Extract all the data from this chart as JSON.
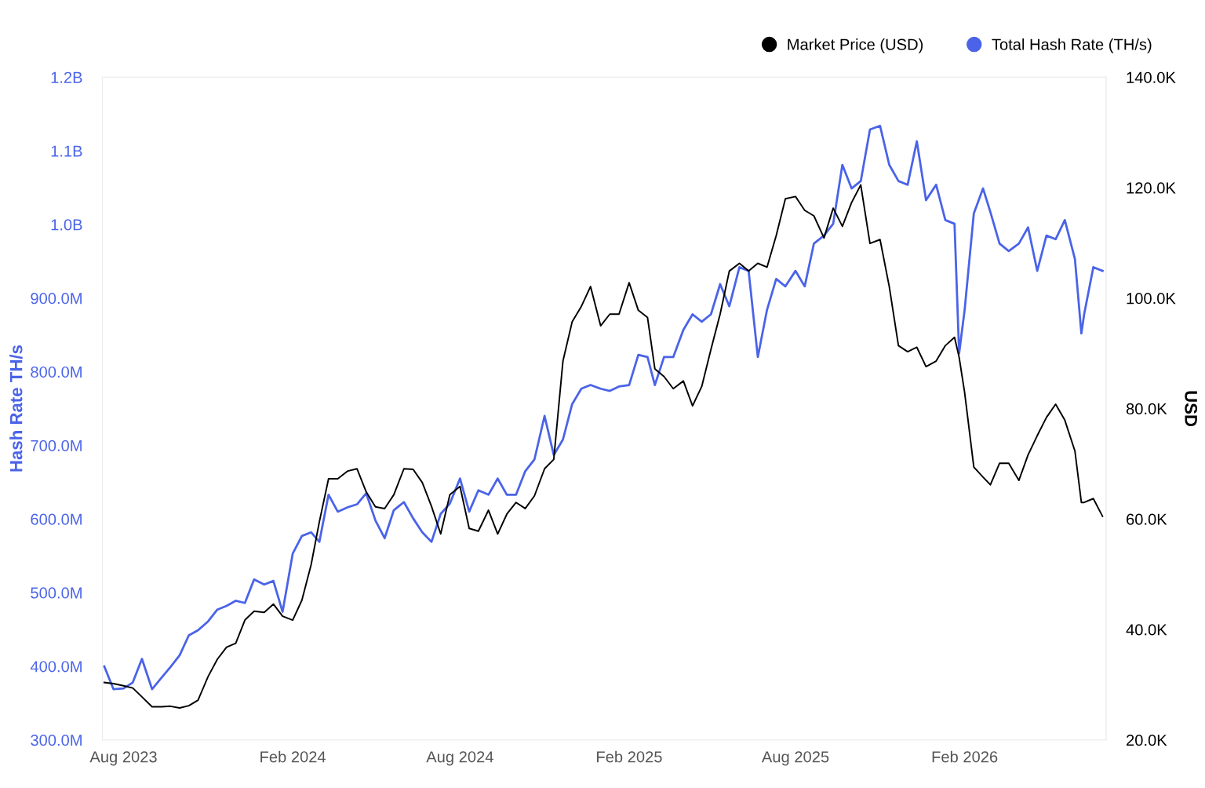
{
  "chart_data": {
    "type": "line",
    "ylabel": "Hash Rate TH/s",
    "y2label": "USD",
    "x": [
      "2023-07-11",
      "2023-07-21",
      "2023-08-01",
      "2023-08-11",
      "2023-08-21",
      "2023-09-01",
      "2023-09-11",
      "2023-09-21",
      "2023-10-01",
      "2023-10-11",
      "2023-10-21",
      "2023-11-01",
      "2023-11-11",
      "2023-11-21",
      "2023-12-01",
      "2023-12-11",
      "2023-12-21",
      "2024-01-01",
      "2024-01-11",
      "2024-01-21",
      "2024-02-01",
      "2024-02-11",
      "2024-02-21",
      "2024-03-01",
      "2024-03-11",
      "2024-03-21",
      "2024-04-01",
      "2024-04-11",
      "2024-04-21",
      "2024-05-01",
      "2024-05-11",
      "2024-05-21",
      "2024-06-01",
      "2024-06-11",
      "2024-06-21",
      "2024-07-01",
      "2024-07-11",
      "2024-07-21",
      "2024-08-01",
      "2024-08-11",
      "2024-08-21",
      "2024-09-01",
      "2024-09-11",
      "2024-09-21",
      "2024-10-01",
      "2024-10-11",
      "2024-10-21",
      "2024-11-01",
      "2024-11-11",
      "2024-11-21",
      "2024-12-01",
      "2024-12-11",
      "2024-12-21",
      "2025-01-01",
      "2025-01-11",
      "2025-01-21",
      "2025-02-01",
      "2025-02-11",
      "2025-02-21",
      "2025-03-01",
      "2025-03-11",
      "2025-03-21",
      "2025-04-01",
      "2025-04-11",
      "2025-04-21",
      "2025-05-01",
      "2025-05-11",
      "2025-05-21",
      "2025-06-01",
      "2025-06-11",
      "2025-06-21",
      "2025-07-01",
      "2025-07-11",
      "2025-07-21",
      "2025-08-01",
      "2025-08-11",
      "2025-08-21",
      "2025-09-01",
      "2025-09-11",
      "2025-09-21",
      "2025-10-01",
      "2025-10-11",
      "2025-10-21",
      "2025-11-01",
      "2025-11-11",
      "2025-11-21",
      "2025-12-01",
      "2025-12-11",
      "2025-12-21",
      "2026-01-01",
      "2026-01-11",
      "2026-01-21",
      "2026-01-26",
      "2026-02-01",
      "2026-02-11",
      "2026-02-21",
      "2026-03-01",
      "2026-03-11",
      "2026-03-21",
      "2026-04-01",
      "2026-04-11",
      "2026-04-21",
      "2026-05-01",
      "2026-05-11",
      "2026-05-21",
      "2026-06-01",
      "2026-06-08",
      "2026-06-11",
      "2026-06-21",
      "2026-07-01"
    ],
    "series": [
      {
        "name": "Market Price (USD)",
        "color": "#000000",
        "axis": "y2",
        "values": [
          30400,
          30200,
          29800,
          29400,
          27800,
          26000,
          26000,
          26100,
          25800,
          26200,
          27200,
          31500,
          34600,
          36800,
          37500,
          41700,
          43300,
          43100,
          44600,
          42400,
          41700,
          45300,
          51700,
          59500,
          67300,
          67300,
          68700,
          69100,
          64900,
          62200,
          61900,
          64400,
          69100,
          69000,
          66600,
          62300,
          57300,
          64400,
          65900,
          58300,
          57800,
          61600,
          57300,
          60900,
          63000,
          61900,
          64200,
          69100,
          70800,
          88600,
          95700,
          98500,
          102100,
          95000,
          97100,
          97100,
          102800,
          97800,
          96500,
          87200,
          85800,
          83600,
          85000,
          80500,
          84000,
          90700,
          97100,
          104900,
          106300,
          104900,
          106300,
          105600,
          111300,
          118000,
          118400,
          115900,
          114900,
          110900,
          116300,
          113000,
          117300,
          120500,
          109900,
          110600,
          102100,
          91400,
          90300,
          91100,
          87600,
          88600,
          91400,
          92900,
          89300,
          82900,
          69400,
          67600,
          66200,
          70100,
          70100,
          67000,
          71600,
          75100,
          78400,
          80800,
          77900,
          72300,
          63000,
          63000,
          63700,
          60500
        ]
      },
      {
        "name": "Total Hash Rate (TH/s)",
        "color": "#4a63e8",
        "axis": "y",
        "values": [
          400000000.0,
          369000000.0,
          370000000.0,
          378000000.0,
          410000000.0,
          369000000.0,
          384000000.0,
          399000000.0,
          415000000.0,
          442000000.0,
          449000000.0,
          461000000.0,
          477000000.0,
          482000000.0,
          489000000.0,
          486000000.0,
          518000000.0,
          511000000.0,
          516000000.0,
          474000000.0,
          553000000.0,
          577000000.0,
          582000000.0,
          569000000.0,
          633000000.0,
          610000000.0,
          616000000.0,
          620000000.0,
          635000000.0,
          598000000.0,
          574000000.0,
          612000000.0,
          623000000.0,
          601000000.0,
          582000000.0,
          569000000.0,
          607000000.0,
          621000000.0,
          655000000.0,
          610000000.0,
          639000000.0,
          633000000.0,
          655000000.0,
          633000000.0,
          633000000.0,
          665000000.0,
          681000000.0,
          740000000.0,
          687000000.0,
          708000000.0,
          756000000.0,
          777000000.0,
          782000000.0,
          777000000.0,
          774000000.0,
          780000000.0,
          782000000.0,
          823000000.0,
          820000000.0,
          782000000.0,
          820000000.0,
          820000000.0,
          857000000.0,
          878000000.0,
          868000000.0,
          878000000.0,
          919000000.0,
          889000000.0,
          942000000.0,
          937000000.0,
          820000000.0,
          884000000.0,
          926000000.0,
          916000000.0,
          937000000.0,
          916000000.0,
          974000000.0,
          985000000.0,
          1001000000.0,
          1081000000.0,
          1049000000.0,
          1059000000.0,
          1129000000.0,
          1134000000.0,
          1081000000.0,
          1059000000.0,
          1054000000.0,
          1113000000.0,
          1033000000.0,
          1054000000.0,
          1006000000.0,
          1001000000.0,
          825000000.0,
          884000000.0,
          1015000000.0,
          1049000000.0,
          1017000000.0,
          974000000.0,
          964000000.0,
          974000000.0,
          996000000.0,
          937000000.0,
          985000000.0,
          980000000.0,
          1006000000.0,
          953000000.0,
          852000000.0,
          878000000.0,
          942000000.0,
          937000000.0
        ]
      }
    ],
    "xlim": [
      "2023-07-09",
      "2026-07-05"
    ],
    "xticks": [
      {
        "value": "2023-08-01",
        "label": "Aug 2023"
      },
      {
        "value": "2024-02-01",
        "label": "Feb 2024"
      },
      {
        "value": "2024-08-01",
        "label": "Aug 2024"
      },
      {
        "value": "2025-02-01",
        "label": "Feb 2025"
      },
      {
        "value": "2025-08-01",
        "label": "Aug 2025"
      },
      {
        "value": "2026-02-01",
        "label": "Feb 2026"
      }
    ],
    "ylim": [
      300000000,
      1200000000
    ],
    "yticks": [
      {
        "value": 300000000,
        "label": "300.0M"
      },
      {
        "value": 400000000,
        "label": "400.0M"
      },
      {
        "value": 500000000,
        "label": "500.0M"
      },
      {
        "value": 600000000,
        "label": "600.0M"
      },
      {
        "value": 700000000,
        "label": "700.0M"
      },
      {
        "value": 800000000,
        "label": "800.0M"
      },
      {
        "value": 900000000,
        "label": "900.0M"
      },
      {
        "value": 1000000000,
        "label": "1.0B"
      },
      {
        "value": 1100000000,
        "label": "1.1B"
      },
      {
        "value": 1200000000,
        "label": "1.2B"
      }
    ],
    "y2lim": [
      20000,
      140000
    ],
    "y2ticks": [
      {
        "value": 20000,
        "label": "20.0K"
      },
      {
        "value": 40000,
        "label": "40.0K"
      },
      {
        "value": 60000,
        "label": "60.0K"
      },
      {
        "value": 80000,
        "label": "80.0K"
      },
      {
        "value": 100000,
        "label": "100.0K"
      },
      {
        "value": 120000,
        "label": "120.0K"
      },
      {
        "value": 140000,
        "label": "140.0K"
      }
    ],
    "grid": false,
    "legend": "top right",
    "marker": "none",
    "line_style": "solid"
  }
}
